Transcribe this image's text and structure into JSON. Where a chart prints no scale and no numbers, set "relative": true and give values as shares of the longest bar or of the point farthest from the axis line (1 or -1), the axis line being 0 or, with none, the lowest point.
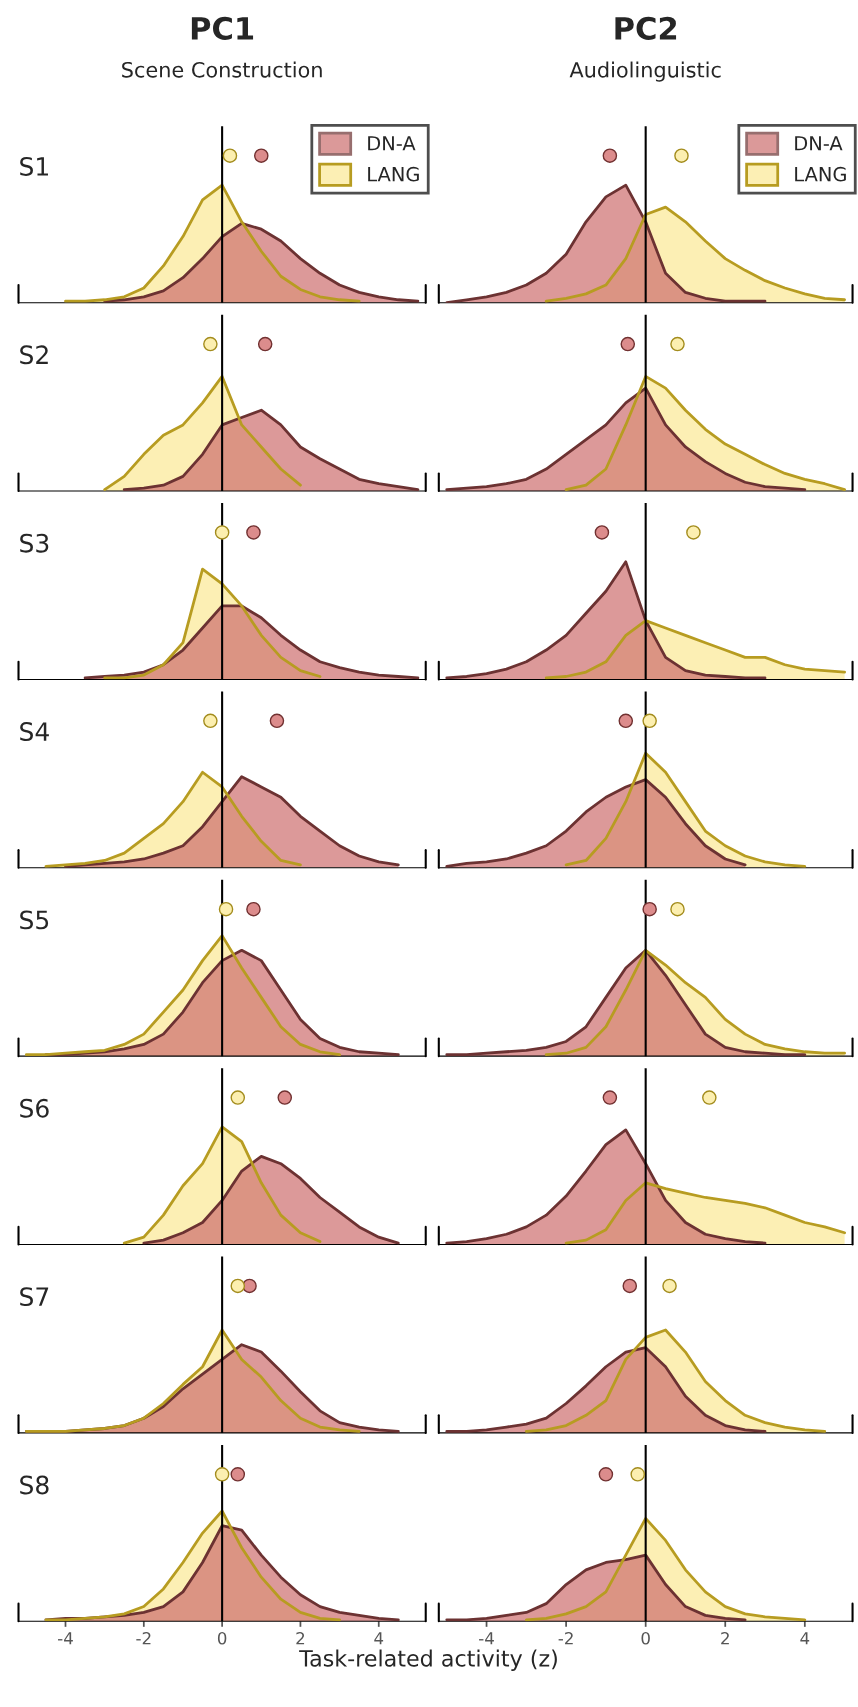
{
  "chart_data": [
    {
      "type": "area",
      "title": "PC1",
      "subtitle": "Scene Construction",
      "ylabel": "S1",
      "relative": true,
      "legend": "top right",
      "tick_labels": false,
      "xlim": [
        -5.2,
        5.2
      ],
      "xticks": [
        -4,
        -2,
        0,
        2,
        4
      ],
      "ref_lines": [
        {
          "axis": "x",
          "value": 0,
          "color": "#000000"
        }
      ],
      "x": [
        -4,
        -3.5,
        -3,
        -2.5,
        -2,
        -1.5,
        -1,
        -0.5,
        0,
        0.5,
        1,
        1.5,
        2,
        2.5,
        3,
        3.5,
        4,
        4.5,
        5
      ],
      "series": [
        {
          "name": "DN-A",
          "color": "#cd6e6e",
          "values": [
            null,
            null,
            0.01,
            0.02,
            0.04,
            0.08,
            0.17,
            0.3,
            0.45,
            0.54,
            0.5,
            0.42,
            0.3,
            0.2,
            0.12,
            0.07,
            0.04,
            0.02,
            0.01
          ]
        },
        {
          "name": "LANG",
          "color": "#fcefb4",
          "values": [
            0.01,
            0.01,
            0.02,
            0.04,
            0.1,
            0.25,
            0.45,
            0.7,
            0.8,
            0.55,
            0.35,
            0.18,
            0.09,
            0.04,
            0.02,
            0.01,
            null,
            null,
            null
          ]
        },
        {
          "type": "scatter",
          "color": "#dc8c8c",
          "x": [
            1.0
          ],
          "values": [
            1
          ]
        },
        {
          "type": "scatter",
          "color": "#fcefb0",
          "x": [
            0.2
          ],
          "values": [
            1
          ]
        }
      ]
    },
    {
      "type": "area",
      "title": "PC2",
      "subtitle": "Audiolinguistic",
      "relative": true,
      "legend": "top right",
      "tick_labels": false,
      "xlim": [
        -5.2,
        5.2
      ],
      "xticks": [
        -4,
        -2,
        0,
        2,
        4
      ],
      "ref_lines": [
        {
          "axis": "x",
          "value": 0,
          "color": "#000000"
        }
      ],
      "x": [
        -5,
        -4.5,
        -4,
        -3.5,
        -3,
        -2.5,
        -2,
        -1.5,
        -1,
        -0.5,
        0,
        0.5,
        1,
        1.5,
        2,
        2.5,
        3,
        3.5,
        4,
        4.5,
        5
      ],
      "series": [
        {
          "name": "DN-A",
          "color": "#cd6e6e",
          "values": [
            0,
            0.02,
            0.04,
            0.07,
            0.12,
            0.2,
            0.33,
            0.55,
            0.72,
            0.8,
            0.55,
            0.2,
            0.07,
            0.03,
            0.01,
            0.01,
            0.01,
            null,
            null,
            null,
            null
          ]
        },
        {
          "name": "LANG",
          "color": "#fcefb4",
          "values": [
            null,
            null,
            null,
            null,
            null,
            0.01,
            0.03,
            0.06,
            0.12,
            0.3,
            0.6,
            0.65,
            0.55,
            0.42,
            0.3,
            0.22,
            0.15,
            0.1,
            0.06,
            0.03,
            0.02
          ]
        },
        {
          "type": "scatter",
          "color": "#dc8c8c",
          "x": [
            -0.9
          ],
          "values": [
            1
          ]
        },
        {
          "type": "scatter",
          "color": "#fcefb0",
          "x": [
            0.9
          ],
          "values": [
            1
          ]
        }
      ]
    },
    {
      "type": "area",
      "ylabel": "S2",
      "relative": true,
      "tick_labels": false,
      "xlim": [
        -5.2,
        5.2
      ],
      "xticks": [
        -4,
        -2,
        0,
        2,
        4
      ],
      "ref_lines": [
        {
          "axis": "x",
          "value": 0,
          "color": "#000000"
        }
      ],
      "x": [
        -3,
        -2.5,
        -2,
        -1.5,
        -1,
        -0.5,
        0,
        0.5,
        1,
        1.5,
        2,
        2.5,
        3,
        3.5,
        4,
        4.5,
        5
      ],
      "series": [
        {
          "color": "#cd6e6e",
          "values": [
            null,
            0.01,
            0.02,
            0.04,
            0.1,
            0.25,
            0.45,
            0.5,
            0.55,
            0.45,
            0.3,
            0.22,
            0.15,
            0.08,
            0.05,
            0.03,
            0.01
          ]
        },
        {
          "color": "#fcefb4",
          "values": [
            0.01,
            0.1,
            0.25,
            0.38,
            0.45,
            0.6,
            0.78,
            0.45,
            0.3,
            0.15,
            0.04,
            null,
            null,
            null,
            null,
            null,
            null
          ]
        },
        {
          "type": "scatter",
          "color": "#dc8c8c",
          "x": [
            1.1
          ],
          "values": [
            1
          ]
        },
        {
          "type": "scatter",
          "color": "#fcefb0",
          "x": [
            -0.3
          ],
          "values": [
            1
          ]
        }
      ]
    },
    {
      "type": "area",
      "relative": true,
      "tick_labels": false,
      "xlim": [
        -5.2,
        5.2
      ],
      "xticks": [
        -4,
        -2,
        0,
        2,
        4
      ],
      "ref_lines": [
        {
          "axis": "x",
          "value": 0,
          "color": "#000000"
        }
      ],
      "x": [
        -5,
        -4.5,
        -4,
        -3.5,
        -3,
        -2.5,
        -2,
        -1.5,
        -1,
        -0.5,
        0,
        0.5,
        1,
        1.5,
        2,
        2.5,
        3,
        3.5,
        4,
        4.5,
        5
      ],
      "series": [
        {
          "color": "#cd6e6e",
          "values": [
            0.01,
            0.02,
            0.03,
            0.05,
            0.08,
            0.15,
            0.25,
            0.35,
            0.45,
            0.6,
            0.7,
            0.45,
            0.3,
            0.2,
            0.12,
            0.06,
            0.03,
            0.02,
            0.01,
            null,
            null
          ]
        },
        {
          "color": "#fcefb4",
          "values": [
            null,
            null,
            null,
            null,
            null,
            null,
            0.01,
            0.04,
            0.15,
            0.45,
            0.78,
            0.7,
            0.55,
            0.42,
            0.32,
            0.25,
            0.18,
            0.12,
            0.08,
            0.05,
            0.01
          ]
        },
        {
          "type": "scatter",
          "color": "#dc8c8c",
          "x": [
            -0.45
          ],
          "values": [
            1
          ]
        },
        {
          "type": "scatter",
          "color": "#fcefb0",
          "x": [
            0.8
          ],
          "values": [
            1
          ]
        }
      ]
    },
    {
      "type": "area",
      "ylabel": "S3",
      "relative": true,
      "tick_labels": false,
      "xlim": [
        -5.2,
        5.2
      ],
      "xticks": [
        -4,
        -2,
        0,
        2,
        4
      ],
      "ref_lines": [
        {
          "axis": "x",
          "value": 0,
          "color": "#000000"
        }
      ],
      "x": [
        -3.5,
        -3,
        -2.5,
        -2,
        -1.5,
        -1,
        -0.5,
        0,
        0.5,
        1,
        1.5,
        2,
        2.5,
        3,
        3.5,
        4,
        4.5,
        5
      ],
      "series": [
        {
          "color": "#cd6e6e",
          "values": [
            0.01,
            0.02,
            0.03,
            0.05,
            0.1,
            0.2,
            0.35,
            0.5,
            0.5,
            0.42,
            0.3,
            0.2,
            0.12,
            0.08,
            0.05,
            0.03,
            0.02,
            0.01
          ]
        },
        {
          "color": "#fcefb4",
          "values": [
            null,
            0.01,
            0.01,
            0.03,
            0.1,
            0.25,
            0.75,
            0.65,
            0.5,
            0.3,
            0.15,
            0.06,
            0.02,
            null,
            null,
            null,
            null,
            null
          ]
        },
        {
          "type": "scatter",
          "color": "#dc8c8c",
          "x": [
            0.8
          ],
          "values": [
            1
          ]
        },
        {
          "type": "scatter",
          "color": "#fcefb0",
          "x": [
            0
          ],
          "values": [
            1
          ]
        }
      ]
    },
    {
      "type": "area",
      "relative": true,
      "tick_labels": false,
      "xlim": [
        -5.2,
        5.2
      ],
      "xticks": [
        -4,
        -2,
        0,
        2,
        4
      ],
      "ref_lines": [
        {
          "axis": "x",
          "value": 0,
          "color": "#000000"
        }
      ],
      "x": [
        -5,
        -4.5,
        -4,
        -3.5,
        -3,
        -2.5,
        -2,
        -1.5,
        -1,
        -0.5,
        0,
        0.5,
        1,
        1.5,
        2,
        2.5,
        3,
        3.5,
        4,
        4.5,
        5
      ],
      "series": [
        {
          "color": "#cd6e6e",
          "values": [
            0.01,
            0.02,
            0.04,
            0.07,
            0.12,
            0.2,
            0.3,
            0.45,
            0.6,
            0.8,
            0.4,
            0.15,
            0.06,
            0.03,
            0.02,
            0.01,
            0.01,
            null,
            null,
            null,
            null
          ]
        },
        {
          "color": "#fcefb4",
          "values": [
            null,
            null,
            null,
            null,
            null,
            0.01,
            0.02,
            0.05,
            0.12,
            0.3,
            0.4,
            0.35,
            0.3,
            0.25,
            0.2,
            0.15,
            0.15,
            0.1,
            0.07,
            0.06,
            0.05
          ]
        },
        {
          "type": "scatter",
          "color": "#dc8c8c",
          "x": [
            -1.1
          ],
          "values": [
            1
          ]
        },
        {
          "type": "scatter",
          "color": "#fcefb0",
          "x": [
            1.2
          ],
          "values": [
            1
          ]
        }
      ]
    },
    {
      "type": "area",
      "ylabel": "S4",
      "relative": true,
      "tick_labels": false,
      "xlim": [
        -5.2,
        5.2
      ],
      "xticks": [
        -4,
        -2,
        0,
        2,
        4
      ],
      "ref_lines": [
        {
          "axis": "x",
          "value": 0,
          "color": "#000000"
        }
      ],
      "x": [
        -4.5,
        -4,
        -3.5,
        -3,
        -2.5,
        -2,
        -1.5,
        -1,
        -0.5,
        0,
        0.5,
        1,
        1.5,
        2,
        2.5,
        3,
        3.5,
        4,
        4.5
      ],
      "series": [
        {
          "color": "#cd6e6e",
          "values": [
            null,
            0.01,
            0.02,
            0.03,
            0.04,
            0.06,
            0.1,
            0.15,
            0.28,
            0.45,
            0.62,
            0.55,
            0.48,
            0.35,
            0.25,
            0.15,
            0.08,
            0.04,
            0.02
          ]
        },
        {
          "color": "#fcefb4",
          "values": [
            0.01,
            0.02,
            0.03,
            0.05,
            0.1,
            0.2,
            0.3,
            0.45,
            0.65,
            0.55,
            0.35,
            0.18,
            0.05,
            0.02,
            null,
            null,
            null,
            null,
            null
          ]
        },
        {
          "type": "scatter",
          "color": "#dc8c8c",
          "x": [
            1.4
          ],
          "values": [
            1
          ]
        },
        {
          "type": "scatter",
          "color": "#fcefb0",
          "x": [
            -0.3
          ],
          "values": [
            1
          ]
        }
      ]
    },
    {
      "type": "area",
      "relative": true,
      "tick_labels": false,
      "xlim": [
        -5.2,
        5.2
      ],
      "xticks": [
        -4,
        -2,
        0,
        2,
        4
      ],
      "ref_lines": [
        {
          "axis": "x",
          "value": 0,
          "color": "#000000"
        }
      ],
      "x": [
        -5,
        -4.5,
        -4,
        -3.5,
        -3,
        -2.5,
        -2,
        -1.5,
        -1,
        -0.5,
        0,
        0.5,
        1,
        1.5,
        2,
        2.5,
        3,
        3.5,
        4
      ],
      "series": [
        {
          "color": "#cd6e6e",
          "values": [
            0.01,
            0.03,
            0.04,
            0.06,
            0.1,
            0.15,
            0.25,
            0.38,
            0.48,
            0.55,
            0.6,
            0.48,
            0.3,
            0.15,
            0.06,
            0.02,
            null,
            null,
            null
          ]
        },
        {
          "color": "#fcefb4",
          "values": [
            null,
            null,
            null,
            null,
            null,
            null,
            0.02,
            0.05,
            0.2,
            0.45,
            0.78,
            0.65,
            0.45,
            0.25,
            0.15,
            0.08,
            0.04,
            0.02,
            0.01
          ]
        },
        {
          "type": "scatter",
          "color": "#dc8c8c",
          "x": [
            -0.5
          ],
          "values": [
            1
          ]
        },
        {
          "type": "scatter",
          "color": "#fcefb0",
          "x": [
            0.1
          ],
          "values": [
            1
          ]
        }
      ]
    },
    {
      "type": "area",
      "ylabel": "S5",
      "relative": true,
      "tick_labels": false,
      "xlim": [
        -5.2,
        5.2
      ],
      "xticks": [
        -4,
        -2,
        0,
        2,
        4
      ],
      "ref_lines": [
        {
          "axis": "x",
          "value": 0,
          "color": "#000000"
        }
      ],
      "x": [
        -5,
        -4.5,
        -4,
        -3.5,
        -3,
        -2.5,
        -2,
        -1.5,
        -1,
        -0.5,
        0,
        0.5,
        1,
        1.5,
        2,
        2.5,
        3,
        3.5,
        4,
        4.5
      ],
      "series": [
        {
          "color": "#cd6e6e",
          "values": [
            null,
            0.01,
            0.01,
            0.02,
            0.03,
            0.05,
            0.08,
            0.15,
            0.3,
            0.5,
            0.65,
            0.72,
            0.65,
            0.45,
            0.25,
            0.12,
            0.06,
            0.03,
            0.02,
            0.01
          ]
        },
        {
          "color": "#fcefb4",
          "values": [
            0.01,
            0.01,
            0.02,
            0.03,
            0.04,
            0.08,
            0.15,
            0.3,
            0.45,
            0.65,
            0.82,
            0.6,
            0.4,
            0.2,
            0.08,
            0.03,
            0.01,
            null,
            null,
            null
          ]
        },
        {
          "type": "scatter",
          "color": "#dc8c8c",
          "x": [
            0.8
          ],
          "values": [
            1
          ]
        },
        {
          "type": "scatter",
          "color": "#fcefb0",
          "x": [
            0.1
          ],
          "values": [
            1
          ]
        }
      ]
    },
    {
      "type": "area",
      "relative": true,
      "tick_labels": false,
      "xlim": [
        -5.2,
        5.2
      ],
      "xticks": [
        -4,
        -2,
        0,
        2,
        4
      ],
      "ref_lines": [
        {
          "axis": "x",
          "value": 0,
          "color": "#000000"
        }
      ],
      "x": [
        -5,
        -4.5,
        -4,
        -3.5,
        -3,
        -2.5,
        -2,
        -1.5,
        -1,
        -0.5,
        0,
        0.5,
        1,
        1.5,
        2,
        2.5,
        3,
        3.5,
        4,
        4.5,
        5
      ],
      "series": [
        {
          "color": "#cd6e6e",
          "values": [
            0.01,
            0.01,
            0.02,
            0.03,
            0.04,
            0.06,
            0.1,
            0.2,
            0.4,
            0.6,
            0.72,
            0.55,
            0.35,
            0.15,
            0.06,
            0.03,
            0.02,
            0.01,
            0.01,
            null,
            null
          ]
        },
        {
          "color": "#fcefb4",
          "values": [
            null,
            null,
            null,
            null,
            null,
            0.01,
            0.02,
            0.06,
            0.2,
            0.45,
            0.72,
            0.62,
            0.5,
            0.4,
            0.25,
            0.15,
            0.08,
            0.05,
            0.03,
            0.02,
            0.02
          ]
        },
        {
          "type": "scatter",
          "color": "#dc8c8c",
          "x": [
            0.1
          ],
          "values": [
            1
          ]
        },
        {
          "type": "scatter",
          "color": "#fcefb0",
          "x": [
            0.8
          ],
          "values": [
            1
          ]
        }
      ]
    },
    {
      "type": "area",
      "ylabel": "S6",
      "relative": true,
      "tick_labels": false,
      "xlim": [
        -5.2,
        5.2
      ],
      "xticks": [
        -4,
        -2,
        0,
        2,
        4
      ],
      "ref_lines": [
        {
          "axis": "x",
          "value": 0,
          "color": "#000000"
        }
      ],
      "x": [
        -2.5,
        -2,
        -1.5,
        -1,
        -0.5,
        0,
        0.5,
        1,
        1.5,
        2,
        2.5,
        3,
        3.5,
        4,
        4.5
      ],
      "series": [
        {
          "color": "#cd6e6e",
          "values": [
            null,
            0.01,
            0.03,
            0.08,
            0.15,
            0.3,
            0.5,
            0.6,
            0.55,
            0.45,
            0.32,
            0.22,
            0.12,
            0.05,
            0.01
          ]
        },
        {
          "color": "#fcefb4",
          "values": [
            0.01,
            0.05,
            0.2,
            0.4,
            0.55,
            0.8,
            0.7,
            0.42,
            0.2,
            0.08,
            0.02,
            null,
            null,
            null,
            null
          ]
        },
        {
          "type": "scatter",
          "color": "#dc8c8c",
          "x": [
            1.6
          ],
          "values": [
            1
          ]
        },
        {
          "type": "scatter",
          "color": "#fcefb0",
          "x": [
            0.4
          ],
          "values": [
            1
          ]
        }
      ]
    },
    {
      "type": "area",
      "relative": true,
      "tick_labels": false,
      "xlim": [
        -5.2,
        5.2
      ],
      "xticks": [
        -4,
        -2,
        0,
        2,
        4
      ],
      "ref_lines": [
        {
          "axis": "x",
          "value": 0,
          "color": "#000000"
        }
      ],
      "x": [
        -5,
        -4.5,
        -4,
        -3.5,
        -3,
        -2.5,
        -2,
        -1.5,
        -1,
        -0.5,
        0,
        0.5,
        1,
        1.5,
        2,
        2.5,
        3,
        3.5,
        4,
        4.5,
        5
      ],
      "series": [
        {
          "color": "#cd6e6e",
          "values": [
            0.01,
            0.02,
            0.04,
            0.07,
            0.12,
            0.2,
            0.33,
            0.5,
            0.68,
            0.78,
            0.55,
            0.3,
            0.15,
            0.07,
            0.04,
            0.02,
            0.01,
            null,
            null,
            null,
            null
          ]
        },
        {
          "color": "#fcefb4",
          "values": [
            null,
            null,
            null,
            null,
            null,
            null,
            0.01,
            0.03,
            0.1,
            0.3,
            0.42,
            0.38,
            0.35,
            0.32,
            0.3,
            0.28,
            0.25,
            0.2,
            0.15,
            0.12,
            0.08
          ]
        },
        {
          "type": "scatter",
          "color": "#dc8c8c",
          "x": [
            -0.9
          ],
          "values": [
            1
          ]
        },
        {
          "type": "scatter",
          "color": "#fcefb0",
          "x": [
            1.6
          ],
          "values": [
            1
          ]
        }
      ]
    },
    {
      "type": "area",
      "ylabel": "S7",
      "relative": true,
      "tick_labels": false,
      "xlim": [
        -5.2,
        5.2
      ],
      "xticks": [
        -4,
        -2,
        0,
        2,
        4
      ],
      "ref_lines": [
        {
          "axis": "x",
          "value": 0,
          "color": "#000000"
        }
      ],
      "x": [
        -5,
        -4.5,
        -4,
        -3.5,
        -3,
        -2.5,
        -2,
        -1.5,
        -1,
        -0.5,
        0,
        0.5,
        1,
        1.5,
        2,
        2.5,
        3,
        3.5,
        4,
        4.5
      ],
      "series": [
        {
          "color": "#cd6e6e",
          "values": [
            0.01,
            0.01,
            0.01,
            0.02,
            0.03,
            0.05,
            0.1,
            0.18,
            0.3,
            0.4,
            0.5,
            0.6,
            0.55,
            0.42,
            0.28,
            0.15,
            0.07,
            0.04,
            0.02,
            0.01
          ]
        },
        {
          "color": "#fcefb4",
          "values": [
            0.01,
            0.01,
            0.01,
            0.02,
            0.03,
            0.05,
            0.1,
            0.2,
            0.33,
            0.45,
            0.7,
            0.5,
            0.38,
            0.22,
            0.1,
            0.04,
            0.02,
            0.01,
            null,
            null
          ]
        },
        {
          "type": "scatter",
          "color": "#dc8c8c",
          "x": [
            0.7
          ],
          "values": [
            1
          ]
        },
        {
          "type": "scatter",
          "color": "#fcefb0",
          "x": [
            0.4
          ],
          "values": [
            1
          ]
        }
      ]
    },
    {
      "type": "area",
      "relative": true,
      "tick_labels": false,
      "xlim": [
        -5.2,
        5.2
      ],
      "xticks": [
        -4,
        -2,
        0,
        2,
        4
      ],
      "ref_lines": [
        {
          "axis": "x",
          "value": 0,
          "color": "#000000"
        }
      ],
      "x": [
        -5,
        -4.5,
        -4,
        -3.5,
        -3,
        -2.5,
        -2,
        -1.5,
        -1,
        -0.5,
        0,
        0.5,
        1,
        1.5,
        2,
        2.5,
        3,
        3.5,
        4,
        4.5
      ],
      "series": [
        {
          "color": "#cd6e6e",
          "values": [
            0.01,
            0.01,
            0.02,
            0.04,
            0.06,
            0.1,
            0.2,
            0.32,
            0.45,
            0.55,
            0.58,
            0.45,
            0.25,
            0.12,
            0.05,
            0.02,
            0.01,
            null,
            null,
            null
          ]
        },
        {
          "color": "#fcefb4",
          "values": [
            null,
            null,
            null,
            null,
            0.01,
            0.02,
            0.05,
            0.12,
            0.22,
            0.5,
            0.65,
            0.7,
            0.55,
            0.35,
            0.22,
            0.12,
            0.07,
            0.04,
            0.02,
            0.01
          ]
        },
        {
          "type": "scatter",
          "color": "#dc8c8c",
          "x": [
            -0.4
          ],
          "values": [
            1
          ]
        },
        {
          "type": "scatter",
          "color": "#fcefb0",
          "x": [
            0.6
          ],
          "values": [
            1
          ]
        }
      ]
    },
    {
      "type": "area",
      "ylabel": "S8",
      "xlabel": "Task-related activity (z)",
      "relative": true,
      "tick_labels": "x",
      "xlim": [
        -5.2,
        5.2
      ],
      "xticks": [
        -4,
        -2,
        0,
        2,
        4
      ],
      "ref_lines": [
        {
          "axis": "x",
          "value": 0,
          "color": "#000000"
        }
      ],
      "x": [
        -4.5,
        -4,
        -3.5,
        -3,
        -2.5,
        -2,
        -1.5,
        -1,
        -0.5,
        0,
        0.5,
        1,
        1.5,
        2,
        2.5,
        3,
        3.5,
        4,
        4.5
      ],
      "series": [
        {
          "color": "#cd6e6e",
          "values": [
            0.01,
            0.02,
            0.02,
            0.03,
            0.04,
            0.06,
            0.1,
            0.2,
            0.4,
            0.65,
            0.62,
            0.45,
            0.3,
            0.18,
            0.1,
            0.06,
            0.04,
            0.02,
            0.01
          ]
        },
        {
          "color": "#fcefb4",
          "values": [
            0.01,
            0.01,
            0.02,
            0.03,
            0.05,
            0.1,
            0.22,
            0.4,
            0.6,
            0.75,
            0.5,
            0.3,
            0.15,
            0.06,
            0.02,
            0.01,
            null,
            null,
            null
          ]
        },
        {
          "type": "scatter",
          "color": "#dc8c8c",
          "x": [
            0.4
          ],
          "values": [
            1
          ]
        },
        {
          "type": "scatter",
          "color": "#fcefb0",
          "x": [
            0
          ],
          "values": [
            1
          ]
        }
      ]
    },
    {
      "type": "area",
      "relative": true,
      "tick_labels": "x",
      "xlim": [
        -5.2,
        5.2
      ],
      "xticks": [
        -4,
        -2,
        0,
        2,
        4
      ],
      "ref_lines": [
        {
          "axis": "x",
          "value": 0,
          "color": "#000000"
        }
      ],
      "x": [
        -5,
        -4.5,
        -4,
        -3.5,
        -3,
        -2.5,
        -2,
        -1.5,
        -1,
        -0.5,
        0,
        0.5,
        1,
        1.5,
        2,
        2.5,
        3,
        3.5,
        4
      ],
      "series": [
        {
          "color": "#cd6e6e",
          "values": [
            0.01,
            0.01,
            0.02,
            0.04,
            0.06,
            0.12,
            0.25,
            0.35,
            0.4,
            0.42,
            0.45,
            0.25,
            0.1,
            0.04,
            0.02,
            0.01,
            null,
            null,
            null
          ]
        },
        {
          "color": "#fcefb4",
          "values": [
            null,
            null,
            null,
            null,
            0.01,
            0.02,
            0.05,
            0.1,
            0.2,
            0.45,
            0.7,
            0.55,
            0.35,
            0.2,
            0.1,
            0.05,
            0.03,
            0.02,
            0.01
          ]
        },
        {
          "type": "scatter",
          "color": "#dc8c8c",
          "x": [
            -1.0
          ],
          "values": [
            1
          ]
        },
        {
          "type": "scatter",
          "color": "#fcefb0",
          "x": [
            -0.2
          ],
          "values": [
            1
          ]
        }
      ]
    }
  ]
}
